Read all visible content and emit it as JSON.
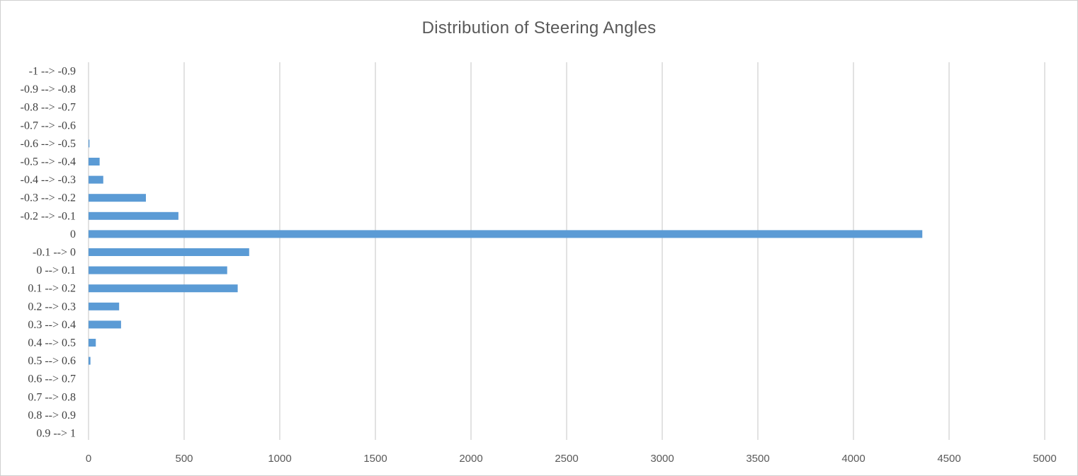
{
  "chart_data": {
    "type": "bar",
    "orientation": "horizontal",
    "title": "Distribution of Steering Angles",
    "xlabel": "",
    "ylabel": "",
    "categories": [
      "-1 --> -0.9",
      "-0.9 --> -0.8",
      "-0.8 --> -0.7",
      "-0.7 --> -0.6",
      "-0.6 --> -0.5",
      "-0.5 --> -0.4",
      "-0.4 --> -0.3",
      "-0.3 --> -0.2",
      "-0.2 --> -0.1",
      "0",
      "-0.1 --> 0",
      "0 --> 0.1",
      "0.1 --> 0.2",
      "0.2 --> 0.3",
      "0.3 --> 0.4",
      "0.4 --> 0.5",
      "0.5 --> 0.6",
      "0.6 --> 0.7",
      "0.7 --> 0.8",
      "0.8 --> 0.9",
      "0.9 --> 1"
    ],
    "values": [
      0,
      0,
      0,
      0,
      5,
      58,
      77,
      300,
      470,
      4360,
      840,
      725,
      780,
      160,
      170,
      38,
      10,
      0,
      0,
      0,
      0
    ],
    "xlim": [
      0,
      5000
    ],
    "xticks": [
      0,
      500,
      1000,
      1500,
      2000,
      2500,
      3000,
      3500,
      4000,
      4500,
      5000
    ],
    "grid": "vertical",
    "legend": "none",
    "bar_color": "#5b9bd5",
    "gridline_color": "#d9d9d9"
  }
}
